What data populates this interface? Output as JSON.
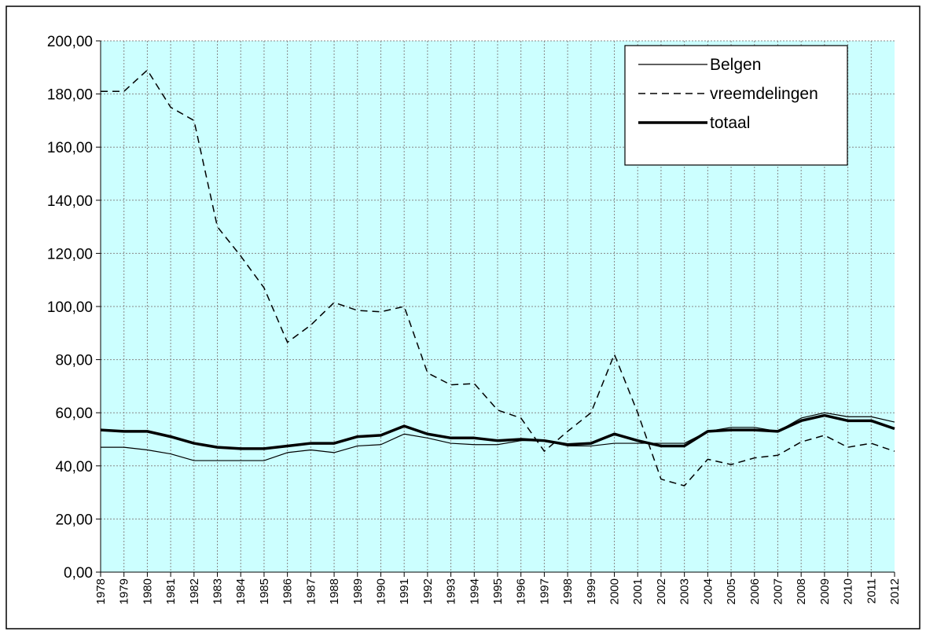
{
  "chart_data": {
    "type": "line",
    "categories": [
      "1978",
      "1979",
      "1980",
      "1981",
      "1982",
      "1983",
      "1984",
      "1985",
      "1986",
      "1987",
      "1988",
      "1989",
      "1990",
      "1991",
      "1992",
      "1993",
      "1994",
      "1995",
      "1996",
      "1997",
      "1998",
      "1999",
      "2000",
      "2001",
      "2002",
      "2003",
      "2004",
      "2005",
      "2006",
      "2007",
      "2008",
      "2009",
      "2010",
      "2011",
      "2012"
    ],
    "series": [
      {
        "name": "Belgen",
        "color": "#000000",
        "style": "thin",
        "values": [
          47,
          47,
          46,
          44.5,
          42,
          42,
          42,
          42,
          45,
          46,
          45,
          47.5,
          48,
          52,
          50.5,
          48.5,
          48,
          48,
          49.5,
          49.5,
          47.5,
          47.5,
          48.5,
          48.5,
          48.5,
          48.5,
          53,
          54.5,
          54.5,
          53,
          58,
          60,
          58.5,
          58.5,
          56.5
        ]
      },
      {
        "name": "vreemdelingen",
        "color": "#000000",
        "style": "dashed",
        "values": [
          181,
          181,
          189,
          175,
          170,
          130,
          119,
          107,
          86.5,
          93,
          101.5,
          98.5,
          98,
          100,
          75,
          70.5,
          71,
          61,
          58,
          45.5,
          53,
          60,
          82,
          60,
          35,
          32.5,
          42.5,
          40.5,
          43,
          44,
          49,
          51.5,
          47,
          48.5,
          45.5
        ]
      },
      {
        "name": "totaal",
        "color": "#000000",
        "style": "thick",
        "values": [
          53.5,
          53,
          53,
          51,
          48.5,
          47,
          46.5,
          46.5,
          47.5,
          48.5,
          48.5,
          51,
          51.5,
          55,
          52,
          50.5,
          50.5,
          49.5,
          50,
          49.5,
          48,
          48.5,
          52,
          49.5,
          47.5,
          47.5,
          53,
          53.5,
          53.5,
          53,
          57,
          59,
          57,
          57,
          54
        ]
      }
    ],
    "ylim": [
      0,
      200
    ],
    "yticks": [
      {
        "value": 0,
        "label": "0,00"
      },
      {
        "value": 20,
        "label": "20,00"
      },
      {
        "value": 40,
        "label": "40,00"
      },
      {
        "value": 60,
        "label": "60,00"
      },
      {
        "value": 80,
        "label": "80,00"
      },
      {
        "value": 100,
        "label": "100,00"
      },
      {
        "value": 120,
        "label": "120,00"
      },
      {
        "value": 140,
        "label": "140,00"
      },
      {
        "value": 160,
        "label": "160,00"
      },
      {
        "value": 180,
        "label": "180,00"
      },
      {
        "value": 200,
        "label": "200,00"
      }
    ],
    "grid": true,
    "background": "#ccffff",
    "legend": "upper right"
  }
}
